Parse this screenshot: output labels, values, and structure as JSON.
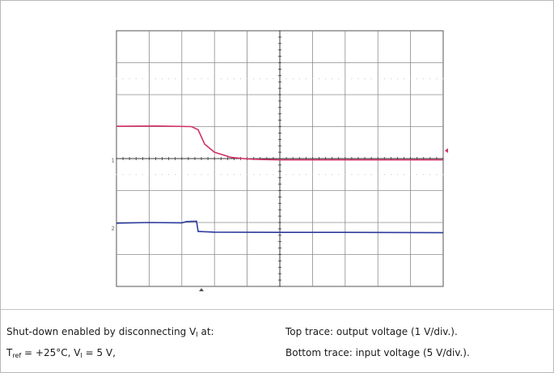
{
  "chart_data": {
    "type": "line",
    "grid": true,
    "divisions": {
      "x": 10,
      "y": 8
    },
    "x_range_div": [
      0,
      10
    ],
    "y_range_div": [
      0,
      8
    ],
    "channel_markers": [
      "1",
      "2"
    ],
    "series": [
      {
        "color": "#d0336b",
        "points_div": [
          [
            0,
            5.01
          ],
          [
            1.2,
            5.02
          ],
          [
            2.3,
            5.0
          ],
          [
            2.5,
            4.9
          ],
          [
            2.7,
            4.45
          ],
          [
            3.0,
            4.2
          ],
          [
            3.5,
            4.04
          ],
          [
            4.0,
            3.99
          ],
          [
            4.5,
            3.97
          ],
          [
            5.0,
            3.96
          ],
          [
            10,
            3.96
          ]
        ]
      },
      {
        "color": "#2b3a9c",
        "points_div": [
          [
            0,
            1.98
          ],
          [
            1.0,
            2.0
          ],
          [
            2.0,
            1.99
          ],
          [
            2.15,
            2.03
          ],
          [
            2.45,
            2.04
          ],
          [
            2.5,
            1.72
          ],
          [
            3.0,
            1.7
          ],
          [
            5.0,
            1.69
          ],
          [
            7.0,
            1.69
          ],
          [
            10,
            1.68
          ]
        ]
      }
    ]
  },
  "caption": {
    "left_line1": {
      "pre": "Shut-down enabled by disconnecting V",
      "sub": "I",
      "post": " at:"
    },
    "left_line2": {
      "t": "T",
      "t_sub": "ref",
      "t_post": " = +25°C, V",
      "v_sub": "I",
      "v_post": " = 5 V,"
    },
    "right_line1": "Top trace: output voltage (1 V/div.).",
    "right_line2": "Bottom trace: input voltage (5 V/div.)."
  }
}
